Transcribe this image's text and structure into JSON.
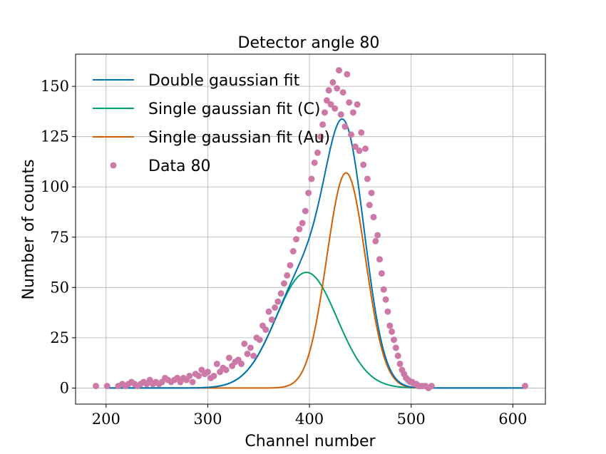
{
  "chart_data": {
    "type": "scatter",
    "title": "Detector angle 80",
    "xlabel": "Channel number",
    "ylabel": "Number of counts",
    "xlim": [
      170,
      632
    ],
    "ylim": [
      -8,
      166
    ],
    "xticks": [
      200,
      300,
      400,
      500,
      600
    ],
    "yticks": [
      0,
      25,
      50,
      75,
      100,
      125,
      150
    ],
    "grid": true,
    "legend_position": "top-left",
    "legend": [
      "Double gaussian fit",
      "Single gaussian fit (C)",
      "Single gaussian fit (Au)",
      "Data 80"
    ],
    "fits": [
      {
        "name": "Double gaussian fit",
        "color": "#0072b2",
        "components": [
          [
            57.5,
            397,
            30
          ],
          [
            107,
            436,
            19
          ]
        ]
      },
      {
        "name": "Single gaussian fit (C)",
        "color": "#009e73",
        "components": [
          [
            57.5,
            397,
            30
          ]
        ]
      },
      {
        "name": "Single gaussian fit (Au)",
        "color": "#d55e00",
        "components": [
          [
            107,
            436,
            19
          ]
        ]
      }
    ],
    "series": [
      {
        "name": "Data 80",
        "color": "#cc79a7",
        "points": [
          [
            190,
            1
          ],
          [
            201,
            1
          ],
          [
            212,
            1
          ],
          [
            216,
            2
          ],
          [
            219,
            1
          ],
          [
            222,
            2
          ],
          [
            225,
            3
          ],
          [
            228,
            2
          ],
          [
            231,
            1
          ],
          [
            234,
            2
          ],
          [
            237,
            3
          ],
          [
            240,
            2
          ],
          [
            243,
            4
          ],
          [
            246,
            2
          ],
          [
            249,
            3
          ],
          [
            252,
            2
          ],
          [
            255,
            3
          ],
          [
            258,
            5
          ],
          [
            261,
            4
          ],
          [
            264,
            3
          ],
          [
            267,
            4
          ],
          [
            270,
            5
          ],
          [
            273,
            3
          ],
          [
            276,
            5
          ],
          [
            279,
            4
          ],
          [
            282,
            6
          ],
          [
            285,
            3
          ],
          [
            288,
            7
          ],
          [
            291,
            6
          ],
          [
            294,
            9
          ],
          [
            297,
            7
          ],
          [
            300,
            8
          ],
          [
            303,
            5
          ],
          [
            306,
            6
          ],
          [
            309,
            12
          ],
          [
            312,
            8
          ],
          [
            315,
            10
          ],
          [
            318,
            9
          ],
          [
            321,
            15
          ],
          [
            324,
            11
          ],
          [
            327,
            13
          ],
          [
            330,
            14
          ],
          [
            333,
            12
          ],
          [
            336,
            22
          ],
          [
            339,
            17
          ],
          [
            342,
            20
          ],
          [
            345,
            16
          ],
          [
            348,
            25
          ],
          [
            351,
            24
          ],
          [
            354,
            31
          ],
          [
            357,
            29
          ],
          [
            360,
            38
          ],
          [
            363,
            34
          ],
          [
            366,
            40
          ],
          [
            369,
            43
          ],
          [
            372,
            47
          ],
          [
            375,
            52
          ],
          [
            378,
            56
          ],
          [
            381,
            61
          ],
          [
            384,
            68
          ],
          [
            387,
            74
          ],
          [
            390,
            79
          ],
          [
            393,
            82
          ],
          [
            396,
            88
          ],
          [
            399,
            97
          ],
          [
            402,
            104
          ],
          [
            405,
            112
          ],
          [
            408,
            117
          ],
          [
            411,
            125
          ],
          [
            413,
            131
          ],
          [
            415,
            137
          ],
          [
            417,
            143
          ],
          [
            419,
            148
          ],
          [
            421,
            141
          ],
          [
            423,
            152
          ],
          [
            425,
            139
          ],
          [
            427,
            149
          ],
          [
            429,
            158
          ],
          [
            431,
            136
          ],
          [
            433,
            147
          ],
          [
            435,
            130
          ],
          [
            437,
            156
          ],
          [
            439,
            142
          ],
          [
            441,
            126
          ],
          [
            443,
            137
          ],
          [
            445,
            120
          ],
          [
            447,
            141
          ],
          [
            449,
            118
          ],
          [
            451,
            127
          ],
          [
            453,
            111
          ],
          [
            455,
            119
          ],
          [
            457,
            104
          ],
          [
            459,
            91
          ],
          [
            461,
            97
          ],
          [
            463,
            85
          ],
          [
            465,
            73
          ],
          [
            467,
            76
          ],
          [
            469,
            64
          ],
          [
            471,
            57
          ],
          [
            473,
            49
          ],
          [
            475,
            44
          ],
          [
            477,
            38
          ],
          [
            479,
            31
          ],
          [
            481,
            28
          ],
          [
            483,
            24
          ],
          [
            485,
            20
          ],
          [
            487,
            16
          ],
          [
            489,
            12
          ],
          [
            491,
            9
          ],
          [
            493,
            7
          ],
          [
            495,
            5
          ],
          [
            497,
            4
          ],
          [
            499,
            3
          ],
          [
            501,
            3
          ],
          [
            503,
            2
          ],
          [
            505,
            2
          ],
          [
            507,
            1
          ],
          [
            509,
            1
          ],
          [
            511,
            1
          ],
          [
            514,
            1
          ],
          [
            517,
            0
          ],
          [
            520,
            1
          ],
          [
            612,
            1
          ]
        ]
      }
    ]
  }
}
